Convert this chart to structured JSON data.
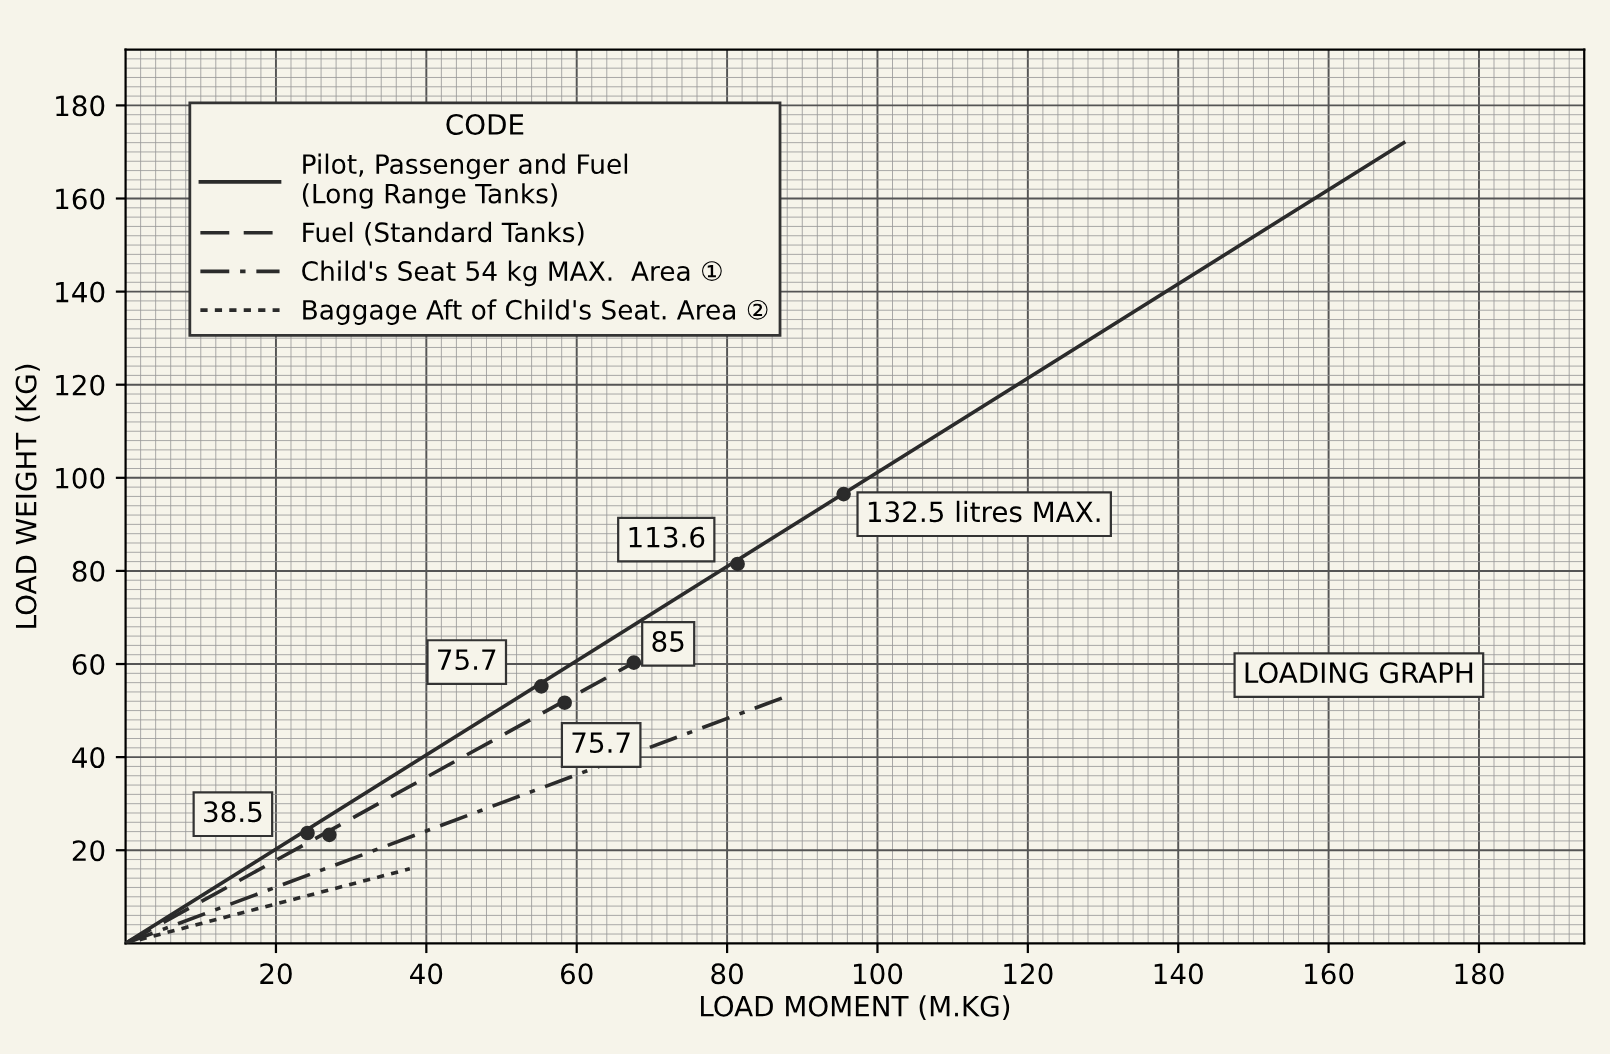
{
  "chart_data": {
    "type": "line",
    "xlabel": "LOAD MOMENT (M.KG)",
    "ylabel": "LOAD WEIGHT (KG)",
    "xlim": [
      0,
      194
    ],
    "ylim": [
      0,
      192
    ],
    "xticks": [
      20,
      40,
      60,
      80,
      100,
      120,
      140,
      160,
      180
    ],
    "yticks": [
      20,
      40,
      60,
      80,
      100,
      120,
      140,
      160,
      180
    ],
    "grid": true,
    "legend": "top left",
    "legend_title": "CODE",
    "series": [
      {
        "name": "Pilot, Passenger and Fuel\n(Long Range Tanks)",
        "color": "#2b2b2b",
        "line_style": "solid",
        "x": [
          0,
          170
        ],
        "values": [
          0,
          172
        ]
      },
      {
        "name": "Fuel (Standard Tanks)",
        "color": "#2b2b2b",
        "line_style": "dashed",
        "x": [
          0,
          67.6
        ],
        "values": [
          0,
          60.3
        ]
      },
      {
        "name": "Child's Seat 54 kg MAX.  Area ①",
        "color": "#2b2b2b",
        "line_style": "dashdot",
        "x": [
          0,
          87.8
        ],
        "values": [
          0,
          53
        ]
      },
      {
        "name": "Baggage Aft of Child's Seat. Area ②",
        "color": "#2b2b2b",
        "line_style": "dotted",
        "x": [
          0,
          37.8
        ],
        "values": [
          0,
          16
        ]
      },
      {
        "type": "scatter",
        "color": "#2b2b2b",
        "marker": "circle",
        "x": [
          24.2,
          55.3,
          81.4,
          95.5
        ],
        "values": [
          23.7,
          55.2,
          81.5,
          96.5
        ]
      },
      {
        "type": "scatter",
        "color": "#2b2b2b",
        "marker": "circle",
        "x": [
          27.1,
          58.4,
          67.6
        ],
        "values": [
          23.3,
          51.7,
          60.3
        ]
      }
    ],
    "annotations": [
      {
        "text": "38.5",
        "x": 24.2,
        "y": 23.7
      },
      {
        "text": "75.7",
        "x": 55.3,
        "y": 55.2
      },
      {
        "text": "113.6",
        "x": 81.4,
        "y": 81.5
      },
      {
        "text": "132.5 litres MAX.",
        "x": 95.5,
        "y": 96.5
      },
      {
        "text": "75.7",
        "x": 58.4,
        "y": 51.7
      },
      {
        "text": "85",
        "x": 67.6,
        "y": 60.3
      },
      "LOADING GRAPH"
    ]
  }
}
